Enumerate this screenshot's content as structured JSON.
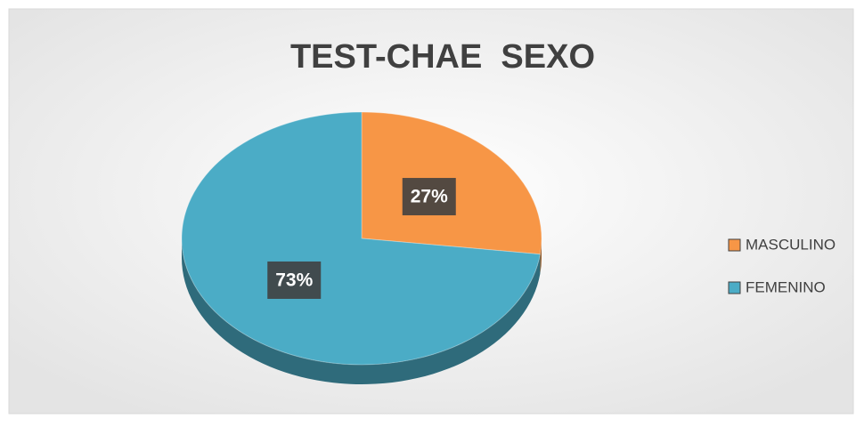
{
  "chart_data": {
    "type": "pie",
    "title": "TEST-CHAE  SEXO",
    "categories": [
      "MASCULINO",
      "FEMENINO"
    ],
    "values": [
      27,
      73
    ],
    "value_labels": [
      "27%",
      "73%"
    ],
    "colors": [
      "#f79646",
      "#4bacc6"
    ],
    "legend": "right"
  }
}
